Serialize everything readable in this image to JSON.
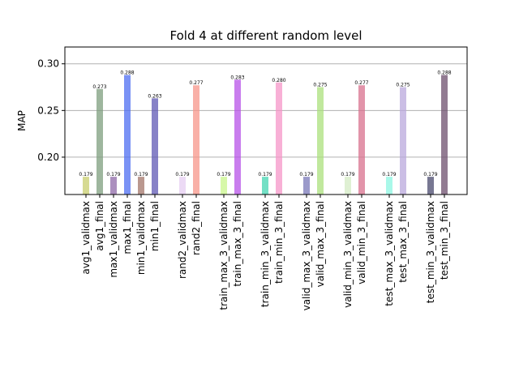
{
  "chart_data": {
    "type": "bar",
    "title": "Fold 4 at different random level",
    "xlabel": "",
    "ylabel": "MAP",
    "ylim": [
      0.16,
      0.318
    ],
    "yticks": [
      "0.20",
      "0.25",
      "0.30"
    ],
    "grid": "y",
    "legend": "none",
    "bars": [
      {
        "label": "avg1_validmax",
        "value": 0.179,
        "text": "0.179",
        "color": "#c8cd6e"
      },
      {
        "label": "avg1_final",
        "value": 0.273,
        "text": "0.273",
        "color": "#7e9e7e"
      },
      {
        "label": "max1_validmax",
        "value": 0.179,
        "text": "0.179",
        "color": "#8f6aa8"
      },
      {
        "label": "max1_final",
        "value": 0.288,
        "text": "0.288",
        "color": "#4d6ef2"
      },
      {
        "label": "min1_validmax",
        "value": 0.179,
        "text": "0.179",
        "color": "#a3766a"
      },
      {
        "label": "min1_final",
        "value": 0.263,
        "text": "0.263",
        "color": "#5f58b4"
      },
      {
        "label": "rand2_validmax",
        "value": 0.179,
        "text": "0.179",
        "color": "#e6cdf2"
      },
      {
        "label": "rand2_final",
        "value": 0.277,
        "text": "0.277",
        "color": "#f7968a"
      },
      {
        "label": "train_max_3_validmax",
        "value": 0.179,
        "text": "0.179",
        "color": "#caf58c"
      },
      {
        "label": "train_max_3_final",
        "value": 0.283,
        "text": "0.283",
        "color": "#b752e8"
      },
      {
        "label": "train_min_3_validmax",
        "value": 0.179,
        "text": "0.179",
        "color": "#44d6b2"
      },
      {
        "label": "train_min_3_final",
        "value": 0.28,
        "text": "0.280",
        "color": "#f596c8"
      },
      {
        "label": "valid_max_3_validmax",
        "value": 0.179,
        "text": "0.179",
        "color": "#7a78b8"
      },
      {
        "label": "valid_max_3_final",
        "value": 0.275,
        "text": "0.275",
        "color": "#abe07c"
      },
      {
        "label": "valid_min_3_validmax",
        "value": 0.179,
        "text": "0.179",
        "color": "#d4ebc4"
      },
      {
        "label": "valid_min_3_final",
        "value": 0.277,
        "text": "0.277",
        "color": "#d8708e"
      },
      {
        "label": "test_max_3_validmax",
        "value": 0.179,
        "text": "0.179",
        "color": "#8cf5e2"
      },
      {
        "label": "test_max_3_final",
        "value": 0.275,
        "text": "0.275",
        "color": "#b9a8dc"
      },
      {
        "label": "test_min_3_validmax",
        "value": 0.179,
        "text": "0.179",
        "color": "#4a4a6e"
      },
      {
        "label": "test_min_3_final",
        "value": 0.288,
        "text": "0.288",
        "color": "#6e4f6e"
      }
    ]
  }
}
